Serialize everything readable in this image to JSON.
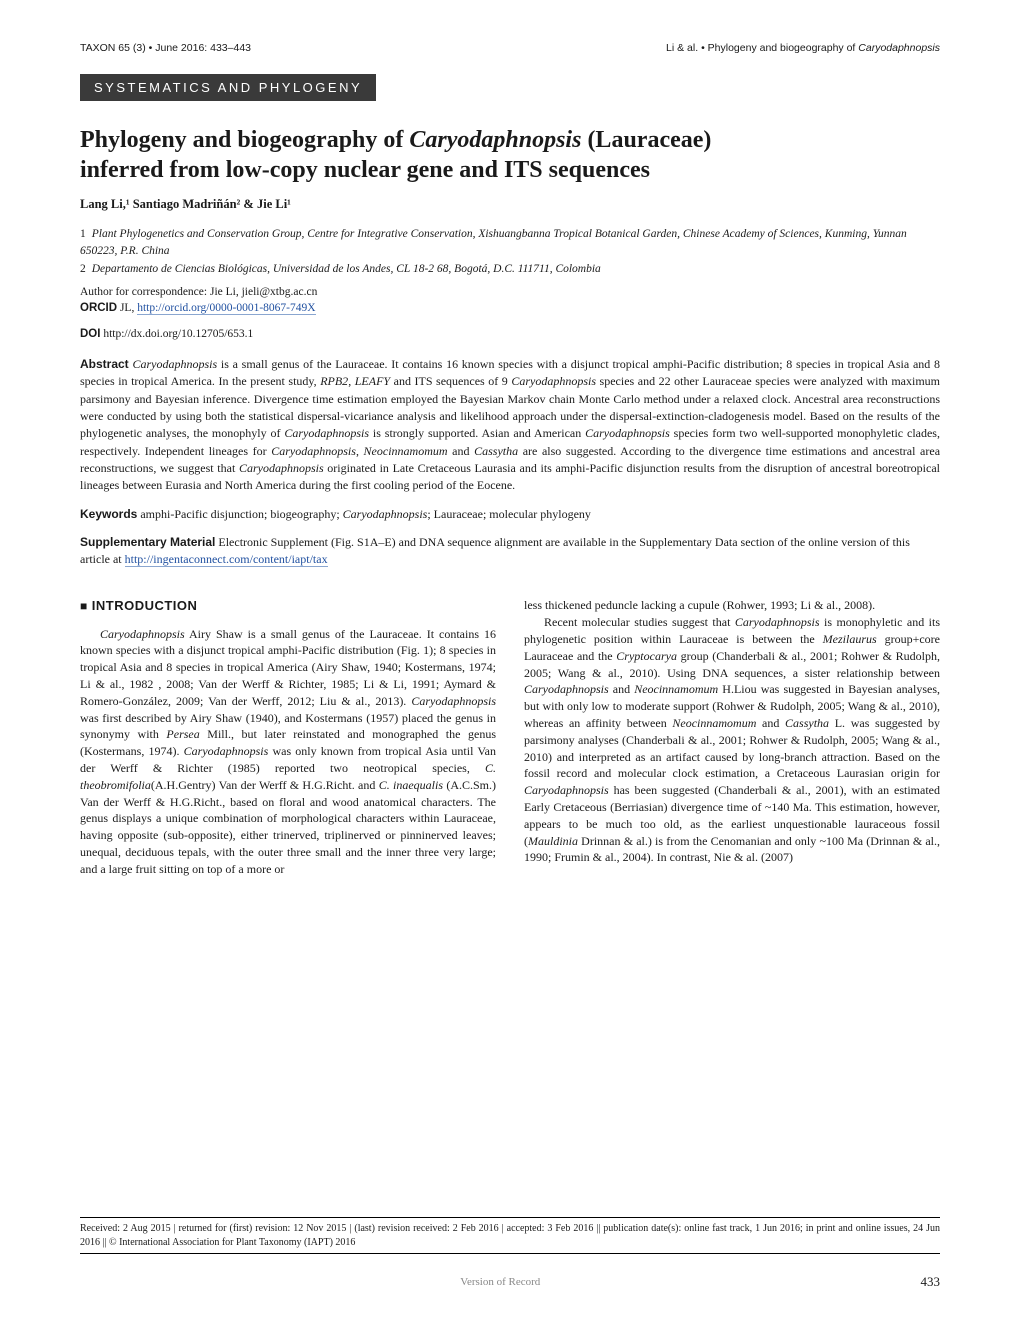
{
  "header": {
    "left": "TAXON 65 (3) • June 2016: 433–443",
    "right_prefix": "Li & al. • Phylogeny and biogeography of ",
    "right_genus": "Caryodaphnopsis"
  },
  "section_banner": "SYSTEMATICS AND PHYLOGENY",
  "title_line1_prefix": "Phylogeny and biogeography of ",
  "title_line1_genus": "Caryodaphnopsis",
  "title_line1_suffix": " (Lauraceae)",
  "title_line2": "inferred from low-copy nuclear gene and ITS sequences",
  "authors": "Lang Li,¹ Santiago Madriñán² & Jie Li¹",
  "affiliations": [
    {
      "num": "1",
      "text": "Plant Phylogenetics and Conservation Group, Centre for Integrative Conservation, Xishuangbanna Tropical Botanical Garden, Chinese Academy of Sciences, Kunming, Yunnan 650223, P.R. China"
    },
    {
      "num": "2",
      "text": "Departamento de Ciencias Biológicas, Universidad de los Andes, CL 18-2 68, Bogotá, D.C. 111711, Colombia"
    }
  ],
  "correspondence": "Author for correspondence: Jie Li, jieli@xtbg.ac.cn",
  "orcid": {
    "label": "ORCID",
    "text": "JL, ",
    "url": "http://orcid.org/0000-0001-8067-749X"
  },
  "doi": {
    "label": "DOI",
    "text": "http://dx.doi.org/10.12705/653.1"
  },
  "abstract": {
    "label": "Abstract",
    "text_html": "<i>Caryodaphnopsis</i> is a small genus of the Lauraceae. It contains 16 known species with a disjunct tropical amphi-Pacific distribution; 8 species in tropical Asia and 8 species in tropical America. In the present study, <i>RPB2</i>, <i>LEAFY</i> and ITS sequences of 9 <i>Caryodaphnopsis</i> species and 22 other Lauraceae species were analyzed with maximum parsimony and Bayesian inference. Divergence time estimation employed the Bayesian Markov chain Monte Carlo method under a relaxed clock. Ancestral area reconstructions were conducted by using both the statistical dispersal-vicariance analysis and likelihood approach under the dispersal-extinction-cladogenesis model. Based on the results of the phylogenetic analyses, the monophyly of <i>Caryodaphnopsis</i> is strongly supported. Asian and American <i>Caryodaphnopsis</i> species form two well-supported monophyletic clades, respectively. Independent lineages for <i>Caryodaphnopsis</i>, <i>Neocinnamomum</i> and <i>Cassytha</i> are also suggested. According to the divergence time estimations and ancestral area reconstructions, we suggest that <i>Caryodaphnopsis</i> originated in Late Cretaceous Laurasia and its amphi-Pacific disjunction results from the disruption of ancestral boreotropical lineages between Eurasia and North America during the first cooling period of the Eocene."
  },
  "keywords": {
    "label": "Keywords",
    "text_html": "amphi-Pacific disjunction; biogeography; <i>Caryodaphnopsis</i>; Lauraceae; molecular phylogeny"
  },
  "suppmat": {
    "label": "Supplementary Material",
    "text_prefix": "Electronic Supplement (Fig. S1A–E) and DNA sequence alignment are available in the Supplementary Data section of the online version of this article at ",
    "url": "http://ingentaconnect.com/content/iapt/tax"
  },
  "intro_heading": "INTRODUCTION",
  "col1_html": "<p class=\"first\"><i>Caryodaphnopsis</i> Airy Shaw is a small genus of the Lauraceae. It contains 16 known species with a disjunct tropical amphi-Pacific distribution (Fig. 1); 8 species in tropical Asia and 8 species in tropical America (Airy Shaw, 1940; Kostermans, 1974; Li &amp; al., 1982 , 2008; Van der Werff &amp; Richter, 1985; Li &amp; Li, 1991; Aymard &amp; Romero-González, 2009; Van der Werff, 2012; Liu &amp; al., 2013). <i>Caryodaphnopsis</i> was first described by Airy Shaw (1940), and Kostermans (1957) placed the genus in synonymy with <i>Persea</i> Mill., but later reinstated and monographed the genus (Kostermans, 1974). <i>Caryodaphnopsis</i> was only known from tropical Asia until Van der Werff &amp; Richter (1985) reported two neotropical species, <i>C. theobromifolia</i>(A.H.Gentry) Van der Werff &amp; H.G.Richt. and <i>C. inaequalis</i> (A.C.Sm.) Van der Werff &amp; H.G.Richt., based on floral and wood anatomical characters. The genus displays a unique combination of morphological characters within Lauraceae, having opposite (sub-opposite), either trinerved, triplinerved or pinninerved leaves; unequal, deciduous tepals, with the outer three small and the inner three very large; and a large fruit sitting on top of a more or</p>",
  "col2_html": "<p style=\"text-indent:0\">less thickened peduncle lacking a cupule (Rohwer, 1993; Li &amp; al., 2008).</p><p>Recent molecular studies suggest that <i>Caryodaphnopsis</i> is monophyletic and its phylogenetic position within Lauraceae is between the <i>Mezilaurus</i> group+core Lauraceae and the <i>Cryptocarya</i> group (Chanderbali &amp; al., 2001; Rohwer &amp; Rudolph, 2005; Wang &amp; al., 2010). Using DNA sequences, a sister relationship between <i>Caryodaphnopsis</i> and <i>Neocinnamomum</i> H.Liou was suggested in Bayesian analyses, but with only low to moderate support (Rohwer &amp; Rudolph, 2005; Wang &amp; al., 2010), whereas an affinity between <i>Neocinnamomum</i> and <i>Cassytha</i> L. was suggested by parsimony analyses (Chanderbali &amp; al., 2001; Rohwer &amp; Rudolph, 2005; Wang &amp; al., 2010) and interpreted as an artifact caused by long-branch attraction. Based on the fossil record and molecular clock estimation, a Cretaceous Laurasian origin for <i>Caryodaphnopsis</i> has been suggested (Chanderbali &amp; al., 2001), with an estimated Early Cretaceous (Berriasian) divergence time of ~140 Ma. This estimation, however, appears to be much too old, as the earliest unquestionable lauraceous fossil (<i>Mauldinia</i> Drinnan &amp; al.) is from the Cenomanian and only ~100 Ma (Drinnan &amp; al., 1990; Frumin &amp; al., 2004). In contrast, Nie &amp; al. (2007)</p>",
  "footer_text": "Received: 2 Aug 2015 | returned for (first) revision: 12 Nov 2015 | (last) revision received: 2 Feb 2016 | accepted: 3 Feb 2016 || publication date(s): online fast track, 1 Jun 2016; in print and online issues, 24 Jun 2016 || © International Association for Plant Taxonomy (IAPT) 2016",
  "version": "Version of Record",
  "page_num": "433"
}
